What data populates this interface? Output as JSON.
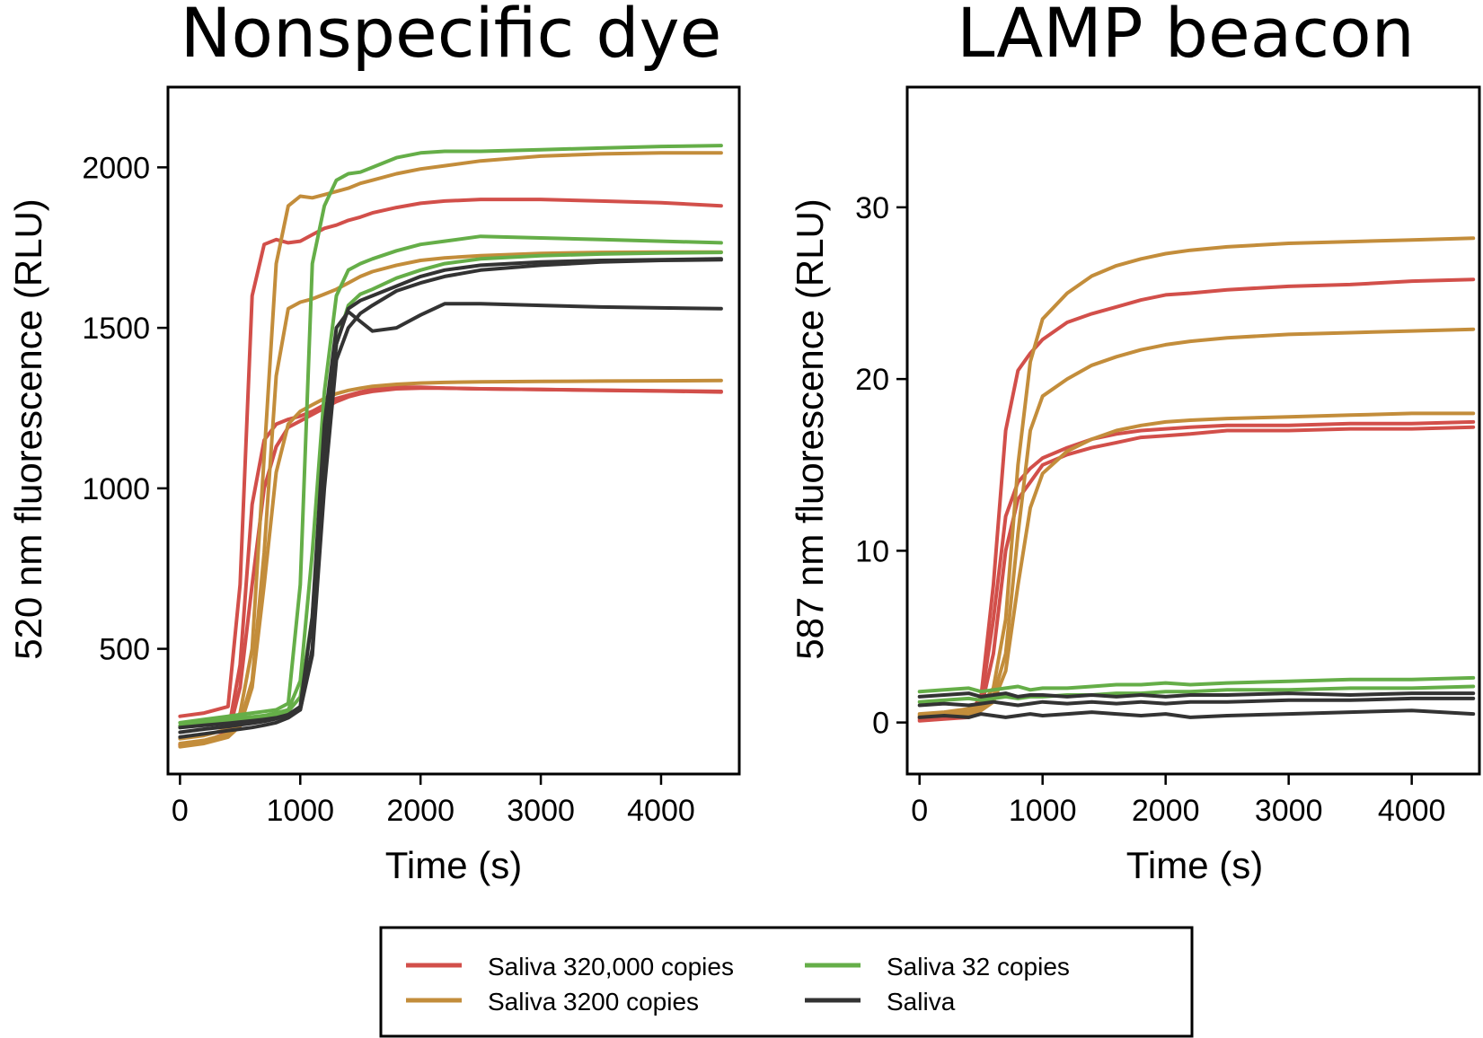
{
  "colors": {
    "saliva_320000": "#d24f4a",
    "saliva_3200": "#c38d3b",
    "saliva_32": "#65ae48",
    "saliva": "#333333"
  },
  "legend": {
    "items": [
      {
        "label": "Saliva 320,000 copies",
        "color_key": "saliva_320000"
      },
      {
        "label": "Saliva 3200 copies",
        "color_key": "saliva_3200"
      },
      {
        "label": "Saliva 32 copies",
        "color_key": "saliva_32"
      },
      {
        "label": "Saliva",
        "color_key": "saliva"
      }
    ]
  },
  "chart_data": [
    {
      "type": "line",
      "title": "Nonspecific dye",
      "xlabel": "Time (s)",
      "ylabel": "520 nm fluorescence (RLU)",
      "xlim": [
        -100,
        4650
      ],
      "ylim": [
        110,
        2250
      ],
      "xticks": [
        0,
        1000,
        2000,
        3000,
        4000
      ],
      "yticks": [
        500,
        1000,
        1500,
        2000
      ],
      "grid": false,
      "x": [
        0,
        200,
        400,
        500,
        600,
        700,
        800,
        900,
        1000,
        1100,
        1200,
        1300,
        1400,
        1500,
        1600,
        1800,
        2000,
        2200,
        2500,
        3000,
        3500,
        4000,
        4500
      ],
      "series": [
        {
          "group": "saliva_320000",
          "values": [
            290,
            300,
            320,
            700,
            1600,
            1760,
            1775,
            1765,
            1770,
            1790,
            1810,
            1820,
            1835,
            1845,
            1858,
            1875,
            1888,
            1895,
            1900,
            1900,
            1895,
            1890,
            1880
          ]
        },
        {
          "group": "saliva_320000",
          "values": [
            200,
            210,
            240,
            450,
            950,
            1150,
            1200,
            1215,
            1225,
            1240,
            1260,
            1280,
            1290,
            1300,
            1308,
            1315,
            1315,
            1312,
            1310,
            1308,
            1305,
            1303,
            1300
          ]
        },
        {
          "group": "saliva_320000",
          "values": [
            200,
            210,
            230,
            380,
            700,
            1000,
            1130,
            1190,
            1210,
            1230,
            1250,
            1270,
            1285,
            1295,
            1302,
            1310,
            1312,
            1312,
            1310,
            1308,
            1306,
            1304,
            1302
          ]
        },
        {
          "group": "saliva_3200",
          "values": [
            220,
            230,
            250,
            300,
            500,
            1100,
            1700,
            1880,
            1910,
            1905,
            1915,
            1925,
            1935,
            1950,
            1960,
            1980,
            1995,
            2005,
            2020,
            2035,
            2042,
            2045,
            2045
          ]
        },
        {
          "group": "saliva_3200",
          "values": [
            205,
            215,
            235,
            270,
            400,
            800,
            1350,
            1560,
            1580,
            1590,
            1605,
            1620,
            1640,
            1660,
            1675,
            1695,
            1710,
            1718,
            1725,
            1732,
            1735,
            1736,
            1736
          ]
        },
        {
          "group": "saliva_3200",
          "values": [
            195,
            205,
            225,
            260,
            380,
            700,
            1050,
            1200,
            1240,
            1260,
            1280,
            1295,
            1305,
            1312,
            1318,
            1324,
            1328,
            1330,
            1332,
            1333,
            1334,
            1335,
            1336
          ]
        },
        {
          "group": "saliva_32",
          "values": [
            270,
            280,
            290,
            295,
            300,
            305,
            310,
            330,
            700,
            1700,
            1880,
            1960,
            1980,
            1985,
            2000,
            2030,
            2045,
            2050,
            2050,
            2055,
            2060,
            2065,
            2068
          ]
        },
        {
          "group": "saliva_32",
          "values": [
            260,
            270,
            280,
            285,
            288,
            292,
            300,
            310,
            400,
            800,
            1300,
            1600,
            1680,
            1700,
            1715,
            1740,
            1760,
            1770,
            1785,
            1780,
            1775,
            1770,
            1765
          ]
        },
        {
          "group": "saliva_32",
          "values": [
            255,
            265,
            275,
            280,
            283,
            287,
            295,
            305,
            350,
            600,
            1100,
            1450,
            1570,
            1605,
            1620,
            1655,
            1680,
            1700,
            1715,
            1725,
            1730,
            1733,
            1735
          ]
        },
        {
          "group": "saliva",
          "values": [
            255,
            262,
            268,
            272,
            276,
            280,
            285,
            295,
            310,
            500,
            1100,
            1450,
            1560,
            1585,
            1600,
            1630,
            1660,
            1680,
            1695,
            1705,
            1710,
            1712,
            1715
          ]
        },
        {
          "group": "saliva",
          "values": [
            240,
            250,
            258,
            263,
            268,
            274,
            282,
            295,
            320,
            600,
            1200,
            1500,
            1550,
            1520,
            1490,
            1500,
            1540,
            1575,
            1575,
            1570,
            1565,
            1562,
            1560
          ]
        },
        {
          "group": "saliva",
          "values": [
            225,
            235,
            245,
            250,
            255,
            262,
            270,
            285,
            310,
            480,
            1000,
            1400,
            1500,
            1545,
            1570,
            1615,
            1640,
            1660,
            1680,
            1695,
            1705,
            1710,
            1712
          ]
        }
      ]
    },
    {
      "type": "line",
      "title": "LAMP beacon",
      "xlabel": "Time (s)",
      "ylabel": "587 nm fluorescence (RLU)",
      "xlim": [
        -100,
        4550
      ],
      "ylim": [
        -3,
        37
      ],
      "xticks": [
        0,
        1000,
        2000,
        3000,
        4000
      ],
      "yticks": [
        0,
        10,
        20,
        30
      ],
      "grid": false,
      "x": [
        0,
        200,
        400,
        500,
        600,
        700,
        800,
        900,
        1000,
        1200,
        1400,
        1600,
        1800,
        2000,
        2200,
        2500,
        3000,
        3500,
        4000,
        4500
      ],
      "series": [
        {
          "group": "saliva_320000",
          "values": [
            0.3,
            0.3,
            0.5,
            1.5,
            8,
            17,
            20.5,
            21.5,
            22.3,
            23.3,
            23.8,
            24.2,
            24.6,
            24.9,
            25.0,
            25.2,
            25.4,
            25.5,
            25.7,
            25.8
          ]
        },
        {
          "group": "saliva_320000",
          "values": [
            0.2,
            0.3,
            0.4,
            1.2,
            6,
            12,
            14,
            14.8,
            15.4,
            16.0,
            16.5,
            16.8,
            17.0,
            17.1,
            17.2,
            17.3,
            17.3,
            17.4,
            17.4,
            17.5
          ]
        },
        {
          "group": "saliva_320000",
          "values": [
            0.1,
            0.2,
            0.3,
            0.8,
            4,
            10,
            13,
            14,
            15,
            15.6,
            16.0,
            16.3,
            16.6,
            16.7,
            16.8,
            17.0,
            17.0,
            17.1,
            17.1,
            17.2
          ]
        },
        {
          "group": "saliva_3200",
          "values": [
            0.5,
            0.6,
            0.8,
            1.0,
            2,
            6,
            15,
            21,
            23.5,
            25,
            26,
            26.6,
            27.0,
            27.3,
            27.5,
            27.7,
            27.9,
            28.0,
            28.1,
            28.2
          ]
        },
        {
          "group": "saliva_3200",
          "values": [
            0.4,
            0.5,
            0.6,
            0.8,
            1.5,
            4,
            11,
            17,
            19,
            20,
            20.8,
            21.3,
            21.7,
            22.0,
            22.2,
            22.4,
            22.6,
            22.7,
            22.8,
            22.9
          ]
        },
        {
          "group": "saliva_3200",
          "values": [
            0.3,
            0.4,
            0.5,
            0.7,
            1.2,
            3,
            8,
            12.5,
            14.5,
            15.8,
            16.5,
            17.0,
            17.3,
            17.5,
            17.6,
            17.7,
            17.8,
            17.9,
            18.0,
            18.0
          ]
        },
        {
          "group": "saliva_32",
          "values": [
            1.8,
            1.9,
            2.0,
            1.8,
            1.9,
            2.0,
            2.1,
            1.9,
            2.0,
            2.0,
            2.1,
            2.2,
            2.2,
            2.3,
            2.2,
            2.3,
            2.4,
            2.5,
            2.5,
            2.6
          ]
        },
        {
          "group": "saliva_32",
          "values": [
            1.2,
            1.3,
            1.4,
            1.3,
            1.4,
            1.5,
            1.4,
            1.5,
            1.5,
            1.6,
            1.6,
            1.7,
            1.7,
            1.8,
            1.8,
            1.9,
            1.9,
            2.0,
            2.0,
            2.1
          ]
        },
        {
          "group": "saliva",
          "values": [
            1.5,
            1.6,
            1.7,
            1.5,
            1.6,
            1.7,
            1.5,
            1.6,
            1.6,
            1.5,
            1.6,
            1.5,
            1.6,
            1.5,
            1.6,
            1.6,
            1.7,
            1.6,
            1.7,
            1.7
          ]
        },
        {
          "group": "saliva",
          "values": [
            1.0,
            1.1,
            1.0,
            1.1,
            1.2,
            1.1,
            1.0,
            1.1,
            1.2,
            1.1,
            1.2,
            1.1,
            1.2,
            1.1,
            1.2,
            1.2,
            1.3,
            1.3,
            1.4,
            1.4
          ]
        },
        {
          "group": "saliva",
          "values": [
            0.3,
            0.4,
            0.3,
            0.5,
            0.4,
            0.3,
            0.4,
            0.5,
            0.4,
            0.5,
            0.6,
            0.5,
            0.4,
            0.5,
            0.3,
            0.4,
            0.5,
            0.6,
            0.7,
            0.5
          ]
        }
      ]
    }
  ]
}
